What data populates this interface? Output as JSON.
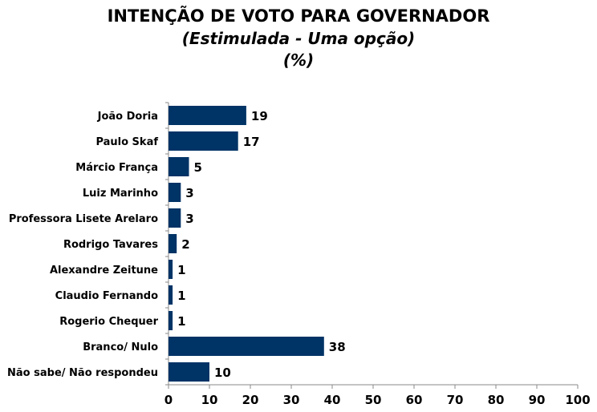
{
  "chart_data": {
    "type": "bar",
    "orientation": "horizontal",
    "title": "INTENÇÃO DE VOTO PARA GOVERNADOR",
    "subtitle": "(Estimulada - Uma opção)",
    "unit_label": "(%)",
    "categories": [
      "João Doria",
      "Paulo Skaf",
      "Márcio França",
      "Luiz Marinho",
      "Professora Lisete Arelaro",
      "Rodrigo Tavares",
      "Alexandre Zeitune",
      "Claudio Fernando",
      "Rogerio Chequer",
      "Branco/ Nulo",
      "Não sabe/ Não respondeu"
    ],
    "values": [
      19,
      17,
      5,
      3,
      3,
      2,
      1,
      1,
      1,
      38,
      10
    ],
    "xlim": [
      0,
      100
    ],
    "xticks": [
      0,
      10,
      20,
      30,
      40,
      50,
      60,
      70,
      80,
      90,
      100
    ],
    "grid": false,
    "bar_color": "#003366"
  }
}
